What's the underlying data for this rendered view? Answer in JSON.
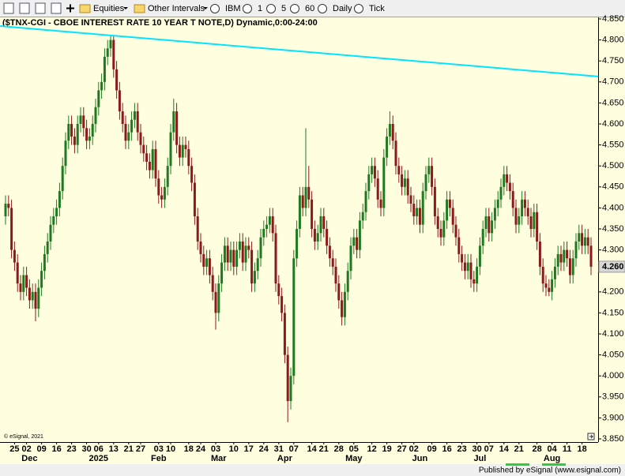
{
  "toolbar": {
    "items": [
      "Equities",
      "Other Intervals",
      "IBM",
      "1",
      "5",
      "60",
      "Daily",
      "Tick"
    ]
  },
  "footer": "Published by eSignal (www.esignal.com)",
  "chart_data": {
    "type": "candlestick",
    "title": "($TNX-CGI - CBOE INTEREST RATE 10 YEAR T NOTE,D) Dynamic,0:00-24:00",
    "copyright": "© eSignal, 2021",
    "up_color": "#1f7a1f",
    "down_color": "#8b1a1a",
    "ylim": [
      3.85,
      4.85
    ],
    "yticks": [
      {
        "value": 4.85,
        "label": "4.850"
      },
      {
        "value": 4.8,
        "label": "4.800"
      },
      {
        "value": 4.75,
        "label": "4.750"
      },
      {
        "value": 4.7,
        "label": "4.700"
      },
      {
        "value": 4.65,
        "label": "4.650"
      },
      {
        "value": 4.6,
        "label": "4.600"
      },
      {
        "value": 4.55,
        "label": "4.550"
      },
      {
        "value": 4.5,
        "label": "4.500"
      },
      {
        "value": 4.45,
        "label": "4.450"
      },
      {
        "value": 4.4,
        "label": "4.400"
      },
      {
        "value": 4.35,
        "label": "4.350"
      },
      {
        "value": 4.3,
        "label": "4.300"
      },
      {
        "value": 4.2,
        "label": "4.200"
      },
      {
        "value": 4.15,
        "label": "4.150"
      },
      {
        "value": 4.1,
        "label": "4.100"
      },
      {
        "value": 4.05,
        "label": "4.050"
      },
      {
        "value": 4.0,
        "label": "4.000"
      },
      {
        "value": 3.95,
        "label": "3.950"
      },
      {
        "value": 3.9,
        "label": "3.900"
      },
      {
        "value": 3.85,
        "label": "3.850"
      }
    ],
    "last_price": {
      "value": 4.26,
      "label": "4.260"
    },
    "xticks": [
      {
        "value": 3,
        "label": "25"
      },
      {
        "value": 7,
        "label": "02"
      },
      {
        "value": 12,
        "label": "09"
      },
      {
        "value": 17,
        "label": "16"
      },
      {
        "value": 22,
        "label": "23"
      },
      {
        "value": 27,
        "label": "30"
      },
      {
        "value": 31,
        "label": "06"
      },
      {
        "value": 36,
        "label": "13"
      },
      {
        "value": 41,
        "label": "21"
      },
      {
        "value": 45,
        "label": "27"
      },
      {
        "value": 51,
        "label": "03"
      },
      {
        "value": 55,
        "label": "10"
      },
      {
        "value": 61,
        "label": "18"
      },
      {
        "value": 65,
        "label": "24"
      },
      {
        "value": 70,
        "label": "03"
      },
      {
        "value": 76,
        "label": "10"
      },
      {
        "value": 81,
        "label": "17"
      },
      {
        "value": 86,
        "label": "24"
      },
      {
        "value": 91,
        "label": "31"
      },
      {
        "value": 96,
        "label": "07"
      },
      {
        "value": 102,
        "label": "14"
      },
      {
        "value": 106,
        "label": "21"
      },
      {
        "value": 111,
        "label": "28"
      },
      {
        "value": 116,
        "label": "05"
      },
      {
        "value": 122,
        "label": "12"
      },
      {
        "value": 127,
        "label": "19"
      },
      {
        "value": 132,
        "label": "27"
      },
      {
        "value": 136,
        "label": "02"
      },
      {
        "value": 142,
        "label": "09"
      },
      {
        "value": 147,
        "label": "16"
      },
      {
        "value": 152,
        "label": "23"
      },
      {
        "value": 157,
        "label": "30"
      },
      {
        "value": 161,
        "label": "07"
      },
      {
        "value": 166,
        "label": "14"
      },
      {
        "value": 171,
        "label": "21"
      },
      {
        "value": 177,
        "label": "28"
      },
      {
        "value": 182,
        "label": "04"
      },
      {
        "value": 187,
        "label": "11"
      },
      {
        "value": 192,
        "label": "18"
      }
    ],
    "month_labels": [
      {
        "value": 8,
        "label": "Dec"
      },
      {
        "value": 31,
        "label": "2025"
      },
      {
        "value": 51,
        "label": "Feb"
      },
      {
        "value": 71,
        "label": "Mar"
      },
      {
        "value": 93,
        "label": "Apr"
      },
      {
        "value": 116,
        "label": "May"
      },
      {
        "value": 138,
        "label": "Jun"
      },
      {
        "value": 158,
        "label": "Jul"
      },
      {
        "value": 182,
        "label": "Aug"
      }
    ],
    "trendline": {
      "color": "#00e5ff",
      "x": [
        -1.8,
        197.4
      ],
      "y": [
        4.833,
        4.713
      ]
    },
    "ohlc": [
      [
        4.38,
        4.43,
        4.36,
        4.41
      ],
      [
        4.41,
        4.43,
        4.38,
        4.4
      ],
      [
        4.4,
        4.42,
        4.28,
        4.3
      ],
      [
        4.3,
        4.32,
        4.25,
        4.27
      ],
      [
        4.27,
        4.29,
        4.2,
        4.22
      ],
      [
        4.22,
        4.24,
        4.18,
        4.2
      ],
      [
        4.2,
        4.26,
        4.18,
        4.24
      ],
      [
        4.24,
        4.26,
        4.19,
        4.21
      ],
      [
        4.21,
        4.23,
        4.16,
        4.18
      ],
      [
        4.18,
        4.22,
        4.16,
        4.2
      ],
      [
        4.2,
        4.22,
        4.13,
        4.16
      ],
      [
        4.16,
        4.23,
        4.14,
        4.21
      ],
      [
        4.21,
        4.27,
        4.19,
        4.25
      ],
      [
        4.25,
        4.31,
        4.23,
        4.29
      ],
      [
        4.29,
        4.34,
        4.27,
        4.32
      ],
      [
        4.32,
        4.38,
        4.3,
        4.36
      ],
      [
        4.36,
        4.4,
        4.34,
        4.38
      ],
      [
        4.38,
        4.42,
        4.36,
        4.4
      ],
      [
        4.4,
        4.46,
        4.38,
        4.44
      ],
      [
        4.44,
        4.52,
        4.42,
        4.5
      ],
      [
        4.5,
        4.58,
        4.48,
        4.56
      ],
      [
        4.56,
        4.62,
        4.54,
        4.6
      ],
      [
        4.6,
        4.62,
        4.55,
        4.57
      ],
      [
        4.57,
        4.59,
        4.53,
        4.55
      ],
      [
        4.55,
        4.62,
        4.53,
        4.6
      ],
      [
        4.6,
        4.64,
        4.58,
        4.62
      ],
      [
        4.62,
        4.64,
        4.57,
        4.59
      ],
      [
        4.59,
        4.61,
        4.54,
        4.56
      ],
      [
        4.56,
        4.59,
        4.54,
        4.57
      ],
      [
        4.57,
        4.62,
        4.55,
        4.6
      ],
      [
        4.6,
        4.66,
        4.58,
        4.64
      ],
      [
        4.64,
        4.7,
        4.62,
        4.68
      ],
      [
        4.68,
        4.72,
        4.66,
        4.7
      ],
      [
        4.7,
        4.78,
        4.68,
        4.76
      ],
      [
        4.76,
        4.8,
        4.74,
        4.78
      ],
      [
        4.78,
        4.81,
        4.76,
        4.8
      ],
      [
        4.8,
        4.81,
        4.71,
        4.73
      ],
      [
        4.73,
        4.75,
        4.66,
        4.68
      ],
      [
        4.68,
        4.7,
        4.61,
        4.63
      ],
      [
        4.63,
        4.65,
        4.58,
        4.6
      ],
      [
        4.6,
        4.62,
        4.54,
        4.56
      ],
      [
        4.56,
        4.6,
        4.54,
        4.58
      ],
      [
        4.58,
        4.63,
        4.56,
        4.61
      ],
      [
        4.61,
        4.65,
        4.59,
        4.63
      ],
      [
        4.63,
        4.65,
        4.56,
        4.58
      ],
      [
        4.58,
        4.6,
        4.53,
        4.55
      ],
      [
        4.55,
        4.57,
        4.51,
        4.53
      ],
      [
        4.53,
        4.55,
        4.49,
        4.51
      ],
      [
        4.51,
        4.53,
        4.47,
        4.49
      ],
      [
        4.49,
        4.56,
        4.47,
        4.54
      ],
      [
        4.54,
        4.56,
        4.45,
        4.47
      ],
      [
        4.47,
        4.49,
        4.41,
        4.43
      ],
      [
        4.43,
        4.45,
        4.4,
        4.42
      ],
      [
        4.42,
        4.47,
        4.4,
        4.45
      ],
      [
        4.45,
        4.52,
        4.43,
        4.5
      ],
      [
        4.5,
        4.6,
        4.48,
        4.58
      ],
      [
        4.58,
        4.66,
        4.56,
        4.63
      ],
      [
        4.63,
        4.65,
        4.53,
        4.55
      ],
      [
        4.55,
        4.57,
        4.5,
        4.52
      ],
      [
        4.52,
        4.57,
        4.5,
        4.55
      ],
      [
        4.55,
        4.57,
        4.52,
        4.54
      ],
      [
        4.54,
        4.56,
        4.48,
        4.5
      ],
      [
        4.5,
        4.52,
        4.44,
        4.46
      ],
      [
        4.46,
        4.48,
        4.36,
        4.38
      ],
      [
        4.38,
        4.4,
        4.3,
        4.32
      ],
      [
        4.32,
        4.34,
        4.27,
        4.29
      ],
      [
        4.29,
        4.31,
        4.24,
        4.26
      ],
      [
        4.26,
        4.3,
        4.24,
        4.28
      ],
      [
        4.28,
        4.3,
        4.22,
        4.24
      ],
      [
        4.24,
        4.26,
        4.18,
        4.2
      ],
      [
        4.2,
        4.22,
        4.11,
        4.15
      ],
      [
        4.15,
        4.24,
        4.13,
        4.22
      ],
      [
        4.22,
        4.29,
        4.2,
        4.27
      ],
      [
        4.27,
        4.33,
        4.25,
        4.31
      ],
      [
        4.31,
        4.33,
        4.25,
        4.27
      ],
      [
        4.27,
        4.32,
        4.25,
        4.3
      ],
      [
        4.3,
        4.32,
        4.24,
        4.26
      ],
      [
        4.26,
        4.32,
        4.24,
        4.3
      ],
      [
        4.3,
        4.34,
        4.28,
        4.32
      ],
      [
        4.32,
        4.34,
        4.25,
        4.27
      ],
      [
        4.27,
        4.33,
        4.25,
        4.31
      ],
      [
        4.31,
        4.33,
        4.28,
        4.3
      ],
      [
        4.3,
        4.32,
        4.2,
        4.22
      ],
      [
        4.22,
        4.27,
        4.2,
        4.25
      ],
      [
        4.25,
        4.3,
        4.23,
        4.28
      ],
      [
        4.28,
        4.35,
        4.26,
        4.33
      ],
      [
        4.33,
        4.37,
        4.31,
        4.35
      ],
      [
        4.35,
        4.38,
        4.33,
        4.36
      ],
      [
        4.36,
        4.4,
        4.34,
        4.38
      ],
      [
        4.38,
        4.4,
        4.32,
        4.34
      ],
      [
        4.34,
        4.36,
        4.2,
        4.22
      ],
      [
        4.22,
        4.24,
        4.17,
        4.19
      ],
      [
        4.19,
        4.21,
        4.13,
        4.15
      ],
      [
        4.15,
        4.17,
        4.03,
        4.05
      ],
      [
        4.05,
        4.07,
        3.89,
        3.94
      ],
      [
        3.94,
        4.02,
        3.92,
        4.0
      ],
      [
        4.0,
        4.3,
        3.98,
        4.28
      ],
      [
        4.28,
        4.37,
        4.26,
        4.35
      ],
      [
        4.35,
        4.45,
        4.33,
        4.43
      ],
      [
        4.43,
        4.45,
        4.38,
        4.4
      ],
      [
        4.4,
        4.59,
        4.38,
        4.45
      ],
      [
        4.45,
        4.5,
        4.4,
        4.42
      ],
      [
        4.42,
        4.44,
        4.33,
        4.35
      ],
      [
        4.35,
        4.37,
        4.3,
        4.32
      ],
      [
        4.32,
        4.36,
        4.3,
        4.34
      ],
      [
        4.34,
        4.4,
        4.32,
        4.38
      ],
      [
        4.38,
        4.4,
        4.33,
        4.35
      ],
      [
        4.35,
        4.37,
        4.29,
        4.31
      ],
      [
        4.31,
        4.33,
        4.26,
        4.28
      ],
      [
        4.28,
        4.3,
        4.24,
        4.26
      ],
      [
        4.26,
        4.28,
        4.2,
        4.22
      ],
      [
        4.22,
        4.24,
        4.16,
        4.18
      ],
      [
        4.18,
        4.2,
        4.12,
        4.14
      ],
      [
        4.14,
        4.22,
        4.12,
        4.2
      ],
      [
        4.2,
        4.27,
        4.18,
        4.25
      ],
      [
        4.25,
        4.33,
        4.23,
        4.31
      ],
      [
        4.31,
        4.35,
        4.29,
        4.33
      ],
      [
        4.33,
        4.35,
        4.28,
        4.3
      ],
      [
        4.3,
        4.39,
        4.28,
        4.37
      ],
      [
        4.37,
        4.41,
        4.35,
        4.39
      ],
      [
        4.39,
        4.46,
        4.37,
        4.44
      ],
      [
        4.44,
        4.5,
        4.42,
        4.48
      ],
      [
        4.48,
        4.52,
        4.46,
        4.5
      ],
      [
        4.5,
        4.52,
        4.45,
        4.47
      ],
      [
        4.47,
        4.49,
        4.4,
        4.42
      ],
      [
        4.42,
        4.44,
        4.38,
        4.4
      ],
      [
        4.4,
        4.54,
        4.38,
        4.52
      ],
      [
        4.52,
        4.59,
        4.5,
        4.57
      ],
      [
        4.57,
        4.63,
        4.55,
        4.6
      ],
      [
        4.6,
        4.62,
        4.54,
        4.56
      ],
      [
        4.56,
        4.58,
        4.48,
        4.5
      ],
      [
        4.5,
        4.52,
        4.46,
        4.48
      ],
      [
        4.48,
        4.5,
        4.43,
        4.45
      ],
      [
        4.45,
        4.49,
        4.43,
        4.47
      ],
      [
        4.47,
        4.49,
        4.41,
        4.43
      ],
      [
        4.43,
        4.45,
        4.39,
        4.41
      ],
      [
        4.41,
        4.43,
        4.36,
        4.38
      ],
      [
        4.38,
        4.42,
        4.36,
        4.4
      ],
      [
        4.4,
        4.42,
        4.34,
        4.36
      ],
      [
        4.36,
        4.46,
        4.34,
        4.44
      ],
      [
        4.44,
        4.5,
        4.42,
        4.48
      ],
      [
        4.48,
        4.52,
        4.46,
        4.5
      ],
      [
        4.5,
        4.52,
        4.43,
        4.45
      ],
      [
        4.45,
        4.47,
        4.36,
        4.38
      ],
      [
        4.38,
        4.4,
        4.33,
        4.35
      ],
      [
        4.35,
        4.37,
        4.31,
        4.33
      ],
      [
        4.33,
        4.39,
        4.31,
        4.37
      ],
      [
        4.37,
        4.44,
        4.35,
        4.42
      ],
      [
        4.42,
        4.44,
        4.38,
        4.4
      ],
      [
        4.4,
        4.42,
        4.34,
        4.36
      ],
      [
        4.36,
        4.38,
        4.31,
        4.33
      ],
      [
        4.33,
        4.35,
        4.27,
        4.29
      ],
      [
        4.29,
        4.31,
        4.25,
        4.27
      ],
      [
        4.27,
        4.29,
        4.23,
        4.25
      ],
      [
        4.25,
        4.29,
        4.23,
        4.27
      ],
      [
        4.27,
        4.29,
        4.21,
        4.23
      ],
      [
        4.23,
        4.25,
        4.2,
        4.22
      ],
      [
        4.22,
        4.28,
        4.2,
        4.26
      ],
      [
        4.26,
        4.33,
        4.24,
        4.31
      ],
      [
        4.31,
        4.37,
        4.29,
        4.35
      ],
      [
        4.35,
        4.4,
        4.33,
        4.38
      ],
      [
        4.38,
        4.4,
        4.32,
        4.34
      ],
      [
        4.34,
        4.39,
        4.32,
        4.37
      ],
      [
        4.37,
        4.42,
        4.35,
        4.4
      ],
      [
        4.4,
        4.44,
        4.38,
        4.42
      ],
      [
        4.42,
        4.47,
        4.4,
        4.45
      ],
      [
        4.45,
        4.5,
        4.43,
        4.48
      ],
      [
        4.48,
        4.5,
        4.44,
        4.46
      ],
      [
        4.46,
        4.48,
        4.42,
        4.44
      ],
      [
        4.44,
        4.46,
        4.38,
        4.4
      ],
      [
        4.4,
        4.42,
        4.34,
        4.36
      ],
      [
        4.36,
        4.4,
        4.34,
        4.38
      ],
      [
        4.38,
        4.44,
        4.36,
        4.42
      ],
      [
        4.42,
        4.44,
        4.38,
        4.4
      ],
      [
        4.4,
        4.42,
        4.36,
        4.38
      ],
      [
        4.38,
        4.4,
        4.33,
        4.35
      ],
      [
        4.35,
        4.41,
        4.33,
        4.39
      ],
      [
        4.39,
        4.41,
        4.3,
        4.32
      ],
      [
        4.32,
        4.34,
        4.24,
        4.26
      ],
      [
        4.26,
        4.28,
        4.2,
        4.22
      ],
      [
        4.22,
        4.24,
        4.19,
        4.21
      ],
      [
        4.21,
        4.23,
        4.19,
        4.2
      ],
      [
        4.2,
        4.25,
        4.18,
        4.23
      ],
      [
        4.23,
        4.28,
        4.21,
        4.26
      ],
      [
        4.26,
        4.31,
        4.24,
        4.29
      ],
      [
        4.29,
        4.31,
        4.25,
        4.27
      ],
      [
        4.27,
        4.32,
        4.25,
        4.3
      ],
      [
        4.3,
        4.32,
        4.26,
        4.28
      ],
      [
        4.28,
        4.3,
        4.22,
        4.24
      ],
      [
        4.24,
        4.3,
        4.22,
        4.28
      ],
      [
        4.28,
        4.34,
        4.26,
        4.32
      ],
      [
        4.32,
        4.36,
        4.3,
        4.34
      ],
      [
        4.34,
        4.36,
        4.29,
        4.31
      ],
      [
        4.31,
        4.35,
        4.29,
        4.33
      ],
      [
        4.33,
        4.35,
        4.29,
        4.31
      ],
      [
        4.31,
        4.33,
        4.24,
        4.26
      ]
    ]
  }
}
